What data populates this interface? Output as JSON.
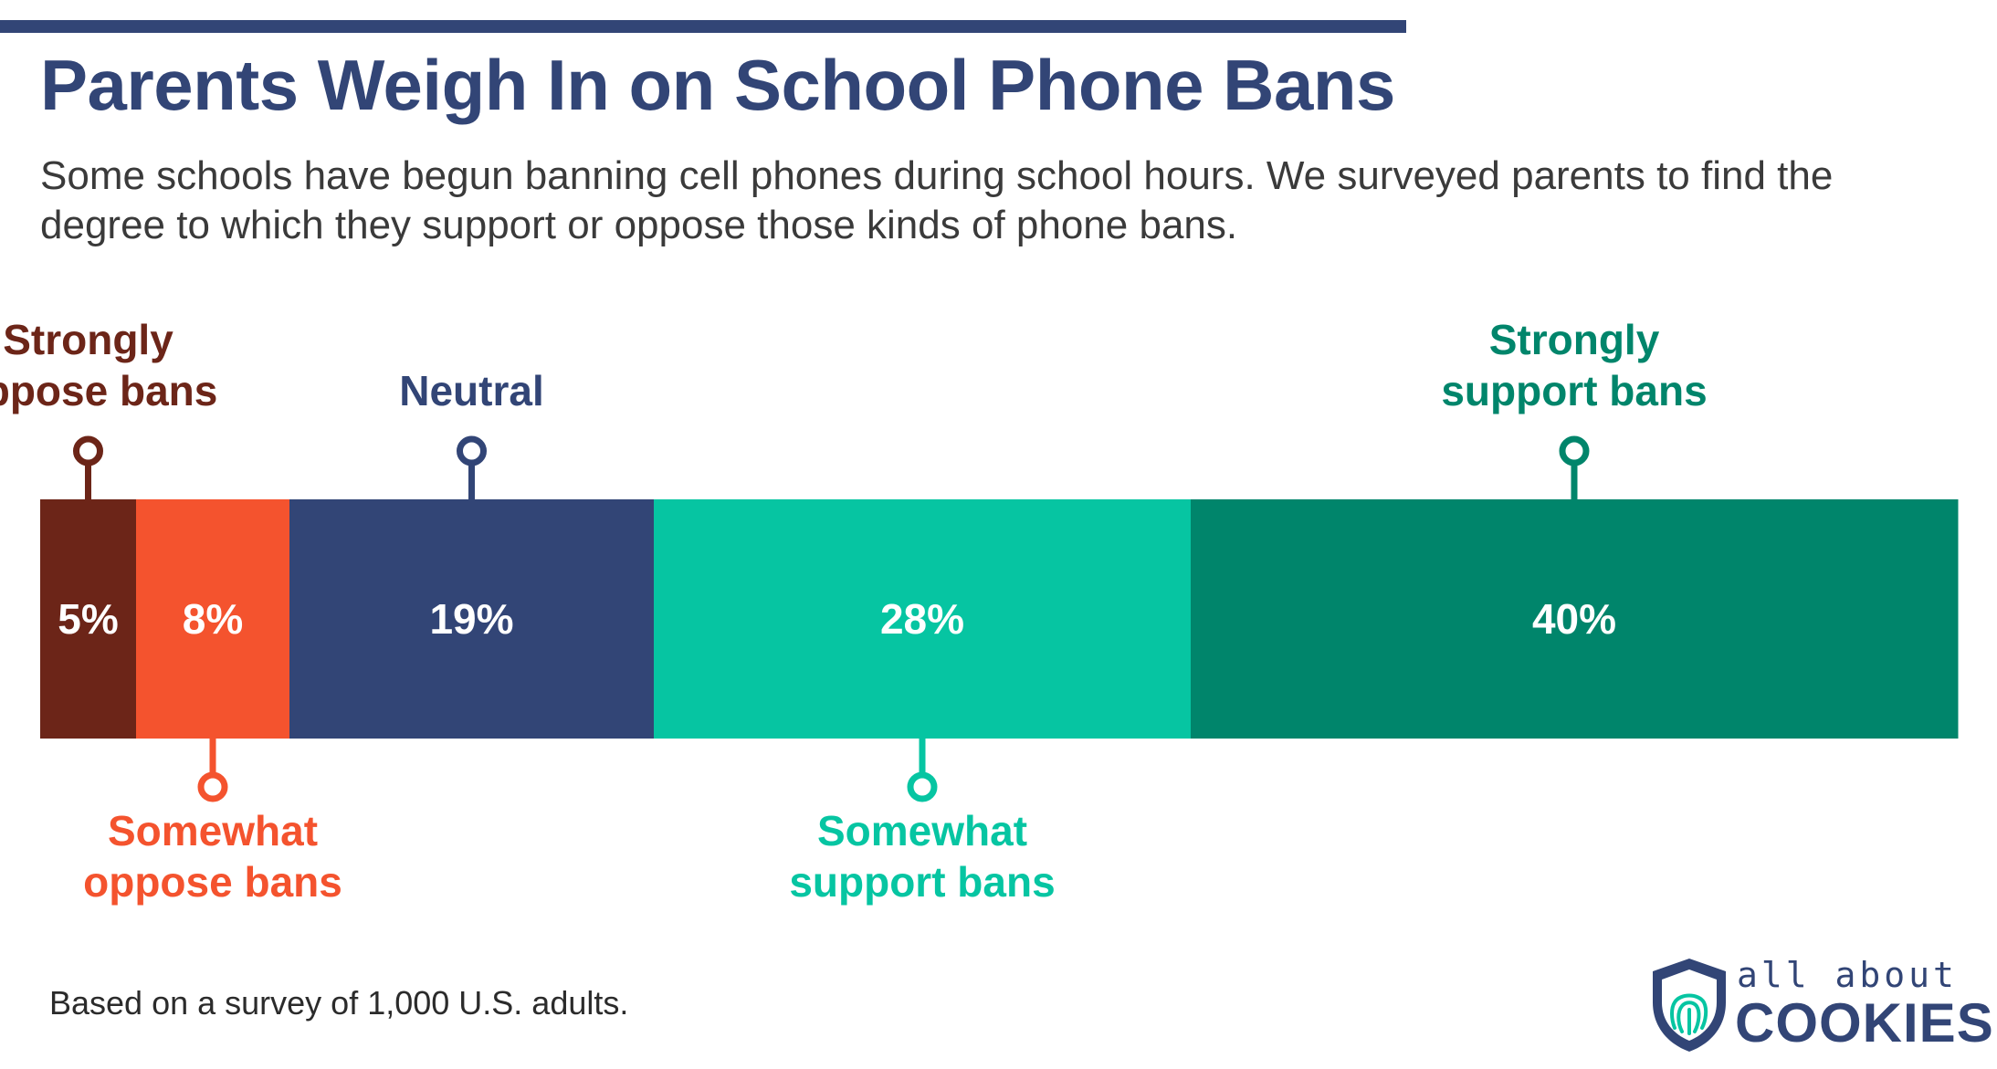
{
  "title": "Parents Weigh In on School Phone Bans",
  "subtitle": "Some schools have begun banning cell phones during school hours. We surveyed parents to find the degree to which they support or oppose those kinds of phone bans.",
  "footnote": "Based on a survey of 1,000 U.S. adults.",
  "logo": {
    "line1": "all about",
    "line2": "COOKIES"
  },
  "colors": {
    "title": "#324576",
    "accent_rule": "#324576"
  },
  "chart_data": {
    "type": "bar",
    "orientation": "horizontal-stacked",
    "unit": "%",
    "categories": [
      "Strongly oppose bans",
      "Somewhat oppose bans",
      "Neutral",
      "Somewhat support bans",
      "Strongly support bans"
    ],
    "values": [
      5,
      8,
      19,
      28,
      40
    ],
    "value_labels": [
      "5%",
      "8%",
      "19%",
      "28%",
      "40%"
    ],
    "label_lines": [
      [
        "Strongly",
        "oppose bans"
      ],
      [
        "Somewhat",
        "oppose bans"
      ],
      [
        "Neutral"
      ],
      [
        "Somewhat",
        "support bans"
      ],
      [
        "Strongly",
        "support bans"
      ]
    ],
    "label_position": [
      "above",
      "below",
      "above",
      "below",
      "above"
    ],
    "colors": [
      "#6c2518",
      "#f4532e",
      "#324576",
      "#06c5a2",
      "#00856b"
    ]
  }
}
